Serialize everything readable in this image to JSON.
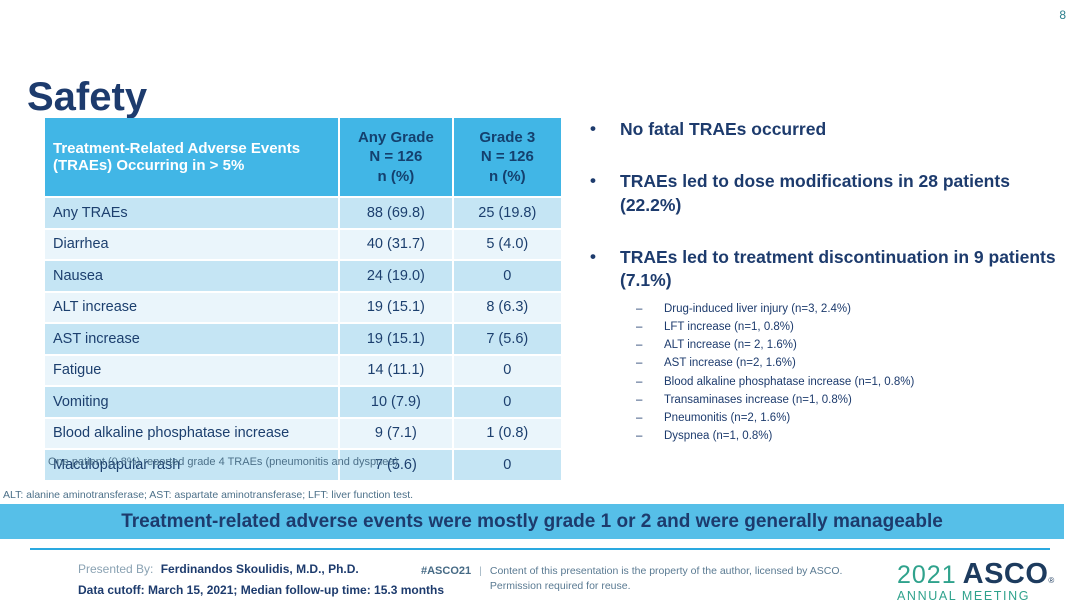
{
  "page_number": "8",
  "title": "Safety",
  "table": {
    "header": {
      "name": "Treatment-Related Adverse Events (TRAEs) Occurring in > 5%",
      "any_grade": "Any Grade\nN = 126\nn (%)",
      "grade3": "Grade 3\nN = 126\nn (%)"
    },
    "rows": [
      {
        "name": "Any TRAEs",
        "any_grade": "88 (69.8)",
        "grade3": "25 (19.8)"
      },
      {
        "name": "Diarrhea",
        "any_grade": "40 (31.7)",
        "grade3": "5 (4.0)"
      },
      {
        "name": "Nausea",
        "any_grade": "24 (19.0)",
        "grade3": "0"
      },
      {
        "name": "ALT increase",
        "any_grade": "19 (15.1)",
        "grade3": "8 (6.3)"
      },
      {
        "name": "AST increase",
        "any_grade": "19 (15.1)",
        "grade3": "7 (5.6)"
      },
      {
        "name": "Fatigue",
        "any_grade": "14 (11.1)",
        "grade3": "0"
      },
      {
        "name": "Vomiting",
        "any_grade": "10 (7.9)",
        "grade3": "0"
      },
      {
        "name": "Blood alkaline phosphatase increase",
        "any_grade": "9 (7.1)",
        "grade3": "1 (0.8)"
      },
      {
        "name": "Maculopapular rash",
        "any_grade": "7 (5.6)",
        "grade3": "0"
      }
    ],
    "footnote": "One patient (0.8%) reported grade 4 TRAEs (pneumonitis and dyspnea)"
  },
  "bullets": {
    "b1": "No fatal TRAEs occurred",
    "b2": "TRAEs led to dose modifications in 28 patients (22.2%)",
    "b3": "TRAEs led to treatment discontinuation in 9 patients (7.1%)"
  },
  "discontinuation_details": [
    "Drug-induced liver injury (n=3, 2.4%)",
    "LFT increase (n=1, 0.8%)",
    "ALT increase (n= 2, 1.6%)",
    "AST increase (n=2, 1.6%)",
    "Blood alkaline phosphatase increase (n=1, 0.8%)",
    "Transaminases increase (n=1, 0.8%)",
    "Pneumonitis (n=2, 1.6%)",
    "Dyspnea (n=1, 0.8%)"
  ],
  "abbreviations": "ALT: alanine aminotransferase; AST: aspartate aminotransferase; LFT: liver function test.",
  "banner": "Treatment-related adverse events were mostly grade 1 or 2 and were generally manageable",
  "footer": {
    "presented_by_label": "Presented By:",
    "presenter": "Ferdinandos Skoulidis, M.D., Ph.D.",
    "data_cutoff": "Data cutoff: March 15, 2021; Median follow-up time: 15.3 months",
    "hashtag": "#ASCO21",
    "divider": "|",
    "rights_line1": "Content of this presentation is the property of the author, licensed by ASCO.",
    "rights_line2": "Permission required for reuse.",
    "logo_year": "2021",
    "logo_name": "ASCO",
    "logo_reg": "®",
    "logo_sub": "ANNUAL MEETING"
  },
  "colors": {
    "navy": "#1d3b6d",
    "table_header_blue": "#41b6e6",
    "stripe_dark": "#c5e5f4",
    "stripe_light": "#eaf5fb",
    "banner_blue": "#56bfe8",
    "rule_blue": "#2aa9e0",
    "teal": "#2fa28c",
    "footnote_gray": "#4c7089"
  }
}
